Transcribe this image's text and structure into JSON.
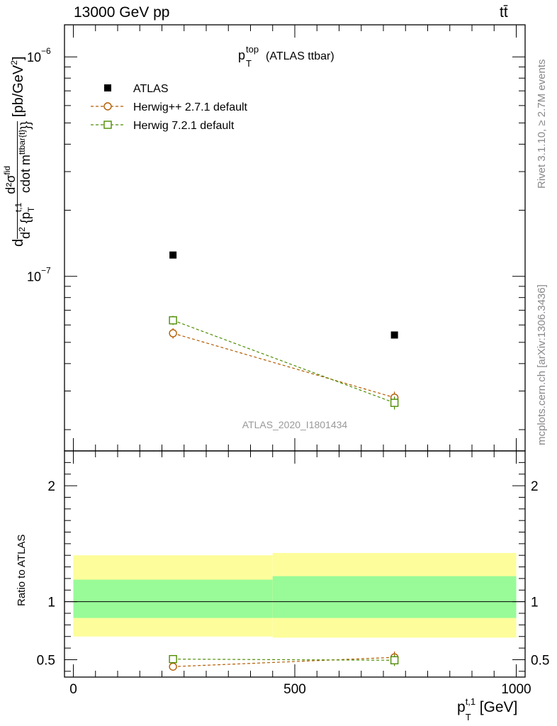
{
  "header": {
    "energy_label": "13000 GeV pp",
    "process_label": "tt̄"
  },
  "side_labels": {
    "rivet": "Rivet 3.1.10, ≥ 2.7M events",
    "mcplots": "mcplots.cern.ch [arXiv:1306.3436]"
  },
  "chart_data": [
    {
      "type": "scatter",
      "title_main": "p",
      "title_sup": "top",
      "title_sub": "T",
      "title_rest": "(ATLAS ttbar)",
      "ylabel": "d²σ^{fid} / d²{p_T^{t,1} cdot m^{ttbar{t}}} [pb/GeV²]",
      "ylabel_parts": {
        "lead": "d",
        "numerator": "d²σ",
        "numerator_sup": "fid",
        "den_d": "d",
        "den_2": "2",
        "den_brace": "{p",
        "den_sup": "t,1",
        "den_sub": "T",
        "den_mid": "cdot m",
        "den_sup2": "ttbar{t}",
        "den_end": "}}",
        "units": "[pb/GeV",
        "units_sup": "2",
        "units_end": "]"
      },
      "yscale": "log",
      "ylim": [
        1.6e-08,
        1.4e-06
      ],
      "y_tick_labels": [
        {
          "value": 1e-06,
          "base": "10",
          "exp": "−6"
        },
        {
          "value": 1e-07,
          "base": "10",
          "exp": "−7"
        }
      ],
      "watermark": "ATLAS_2020_I1801434",
      "legend_position": "top-left",
      "series": [
        {
          "name": "ATLAS",
          "color": "#000000",
          "marker": "filled-square",
          "x": [
            225,
            725
          ],
          "y": [
            1.25e-07,
            5.4e-08
          ]
        },
        {
          "name": "Herwig++ 2.7.1 default",
          "color": "#b35c00",
          "marker": "open-circle",
          "x": [
            225,
            725
          ],
          "y": [
            5.5e-08,
            2.8e-08
          ],
          "err": [
            3e-09,
            1.8e-09
          ]
        },
        {
          "name": "Herwig 7.2.1 default",
          "color": "#4d8c00",
          "marker": "open-square",
          "x": [
            225,
            725
          ],
          "y": [
            6.3e-08,
            2.65e-08
          ],
          "err": [
            3e-09,
            1.8e-09
          ]
        }
      ]
    },
    {
      "type": "scatter",
      "ylabel": "Ratio to ATLAS",
      "xlabel_main": "p",
      "xlabel_sup": "t,1",
      "xlabel_sub": "T",
      "xlabel_units": "[GeV]",
      "xlim": [
        -20,
        1020
      ],
      "ylim": [
        0.35,
        2.3
      ],
      "x_ticks": [
        0,
        500,
        1000
      ],
      "y_ticks": [
        0.5,
        1,
        2
      ],
      "bands": [
        {
          "x": [
            0,
            450
          ],
          "outer": [
            0.7,
            1.4
          ],
          "inner": [
            0.86,
            1.19
          ]
        },
        {
          "x": [
            450,
            1000
          ],
          "outer": [
            0.69,
            1.42
          ],
          "inner": [
            0.86,
            1.22
          ]
        }
      ],
      "band_colors": {
        "outer": "#fdfd9b",
        "inner": "#98fb98"
      },
      "series": [
        {
          "name": "Herwig++ 2.7.1 default",
          "color": "#b35c00",
          "marker": "open-circle",
          "x": [
            225,
            725
          ],
          "y": [
            0.44,
            0.52
          ],
          "err": [
            0.03,
            0.05
          ]
        },
        {
          "name": "Herwig 7.2.1 default",
          "color": "#4d8c00",
          "marker": "open-square",
          "x": [
            225,
            725
          ],
          "y": [
            0.505,
            0.495
          ],
          "err": [
            0.03,
            0.05
          ]
        }
      ]
    }
  ]
}
